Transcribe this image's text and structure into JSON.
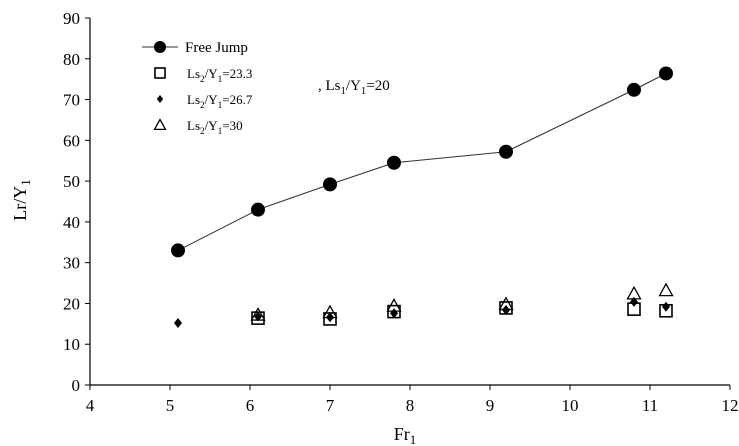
{
  "chart_data": {
    "type": "scatter",
    "xlabel": {
      "base": "Fr",
      "sub": "1"
    },
    "ylabel": {
      "base": "Lr/Y",
      "sub": "1"
    },
    "xlim": [
      4,
      12
    ],
    "ylim": [
      0,
      90
    ],
    "x_ticks": [
      4,
      5,
      6,
      7,
      8,
      9,
      10,
      11,
      12
    ],
    "y_ticks": [
      0,
      10,
      20,
      30,
      40,
      50,
      60,
      70,
      80,
      90
    ],
    "grid": false,
    "legend_placement": "top-left",
    "annotation": {
      "prefix": ", Ls",
      "sub1": "1",
      "mid": "/Y",
      "sub2": "1",
      "suffix": "=20"
    },
    "series": [
      {
        "name": "Free Jump",
        "legend": {
          "text": "Free Jump"
        },
        "marker": "filled-circle",
        "line": true,
        "color": "#000000",
        "x": [
          5.1,
          6.1,
          7.0,
          7.8,
          9.2,
          10.8,
          11.2
        ],
        "y": [
          33.0,
          43.0,
          49.2,
          54.5,
          57.2,
          72.4,
          76.4
        ]
      },
      {
        "name": "Ls2/Y1=23.3",
        "legend": {
          "pre": "Ls",
          "s1": "2",
          "mid": "/Y",
          "s2": "1",
          "post": "=23.3"
        },
        "marker": "open-square",
        "line": false,
        "color": "#000000",
        "x": [
          6.1,
          7.0,
          7.8,
          9.2,
          10.8,
          11.2
        ],
        "y": [
          16.4,
          16.2,
          18.0,
          18.9,
          18.6,
          18.2
        ]
      },
      {
        "name": "Ls2/Y1=26.7",
        "legend": {
          "pre": "Ls",
          "s1": "2",
          "mid": "/Y",
          "s2": "1",
          "post": "=26.7"
        },
        "marker": "filled-diamond",
        "line": false,
        "color": "#000000",
        "x": [
          5.1,
          6.1,
          7.0,
          7.8,
          9.2,
          10.8,
          11.2
        ],
        "y": [
          15.2,
          16.8,
          16.6,
          17.6,
          18.4,
          20.4,
          19.2
        ]
      },
      {
        "name": "Ls2/Y1=30",
        "legend": {
          "pre": "Ls",
          "s1": "2",
          "mid": "/Y",
          "s2": "1",
          "post": "=30"
        },
        "marker": "open-triangle",
        "line": false,
        "color": "#000000",
        "x": [
          6.1,
          7.0,
          7.8,
          9.2,
          10.8,
          11.2
        ],
        "y": [
          17.2,
          17.8,
          19.4,
          19.8,
          22.4,
          23.2
        ]
      }
    ]
  }
}
